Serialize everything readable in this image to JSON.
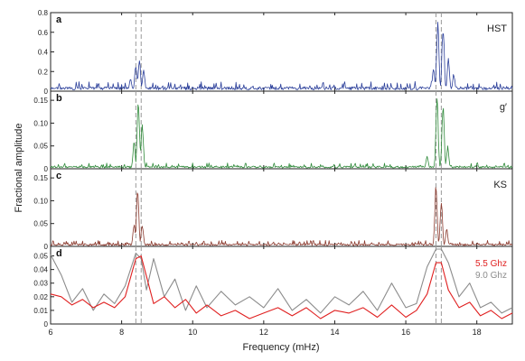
{
  "figure": {
    "ylabel": "Fractional amplitude",
    "xlabel": "Frequency (mHz)",
    "x_ticks": [
      "6",
      "8",
      "10",
      "12",
      "14",
      "16",
      "18"
    ]
  },
  "chart_data": {
    "type": "line",
    "xlabel": "Frequency (mHz)",
    "ylabel": "Fractional amplitude",
    "xlim": [
      6,
      19
    ],
    "x_ticks": [
      6,
      8,
      10,
      12,
      14,
      16,
      18
    ],
    "reference_lines_x": [
      8.4,
      8.55,
      16.85,
      17.0
    ],
    "colors": {
      "hst": "#2b3f9a",
      "gprime": "#2f8a3a",
      "ks": "#8b3a2e",
      "ghz55": "#e02020",
      "ghz90": "#8c8c8c",
      "dashed": "#9a9a9a"
    },
    "panels": [
      {
        "id": "a",
        "letter": "a",
        "label": "HST",
        "ylim": [
          0,
          0.8
        ],
        "yticks": [
          0,
          0.2,
          0.4,
          0.6,
          0.8
        ],
        "ytick_labels": [
          "0",
          "0.2",
          "0.4",
          "0.6",
          "0.8"
        ],
        "series": [
          {
            "key": "hst",
            "noise": 0.045,
            "peaks": [
              [
                8.25,
                0.14
              ],
              [
                8.4,
                0.28
              ],
              [
                8.5,
                0.33
              ],
              [
                8.62,
                0.22
              ],
              [
                16.78,
                0.25
              ],
              [
                16.9,
                0.72
              ],
              [
                17.05,
                0.72
              ],
              [
                17.2,
                0.35
              ],
              [
                17.35,
                0.18
              ]
            ]
          }
        ]
      },
      {
        "id": "b",
        "letter": "b",
        "label": "g′",
        "ylim": [
          0,
          0.17
        ],
        "yticks": [
          0,
          0.05,
          0.1,
          0.15
        ],
        "ytick_labels": [
          "0",
          "0.05",
          "0.10",
          "0.15"
        ],
        "series": [
          {
            "key": "gprime",
            "noise": 0.006,
            "peaks": [
              [
                8.35,
                0.06
              ],
              [
                8.47,
                0.16
              ],
              [
                8.58,
                0.1
              ],
              [
                16.88,
                0.16
              ],
              [
                17.05,
                0.15
              ],
              [
                17.18,
                0.05
              ],
              [
                16.6,
                0.03
              ]
            ]
          }
        ]
      },
      {
        "id": "c",
        "letter": "c",
        "label": "KS",
        "ylim": [
          0,
          0.17
        ],
        "yticks": [
          0,
          0.05,
          0.1,
          0.15
        ],
        "ytick_labels": [
          "0",
          "0.05",
          "0.10",
          "0.15"
        ],
        "series": [
          {
            "key": "ks",
            "noise": 0.006,
            "peaks": [
              [
                8.35,
                0.05
              ],
              [
                8.45,
                0.13
              ],
              [
                8.58,
                0.05
              ],
              [
                16.85,
                0.14
              ],
              [
                17.0,
                0.1
              ],
              [
                17.15,
                0.04
              ]
            ]
          }
        ]
      },
      {
        "id": "d",
        "letter": "d",
        "label": "",
        "ylim": [
          0,
          0.057
        ],
        "yticks": [
          0,
          0.01,
          0.02,
          0.03,
          0.04,
          0.05
        ],
        "ytick_labels": [
          "0",
          "0.01",
          "0.02",
          "0.03",
          "0.04",
          "0.05"
        ],
        "legend": [
          "5.5 Ghz",
          "9.0 Ghz"
        ],
        "series": [
          {
            "key": "ghz90",
            "name": "9.0 Ghz",
            "points": [
              [
                6.0,
                0.051
              ],
              [
                6.3,
                0.036
              ],
              [
                6.6,
                0.016
              ],
              [
                6.9,
                0.026
              ],
              [
                7.2,
                0.01
              ],
              [
                7.5,
                0.022
              ],
              [
                7.8,
                0.015
              ],
              [
                8.1,
                0.028
              ],
              [
                8.4,
                0.052
              ],
              [
                8.55,
                0.048
              ],
              [
                8.7,
                0.025
              ],
              [
                8.9,
                0.048
              ],
              [
                9.2,
                0.02
              ],
              [
                9.5,
                0.033
              ],
              [
                9.8,
                0.01
              ],
              [
                10.1,
                0.028
              ],
              [
                10.4,
                0.012
              ],
              [
                10.8,
                0.024
              ],
              [
                11.2,
                0.014
              ],
              [
                11.6,
                0.02
              ],
              [
                12.0,
                0.012
              ],
              [
                12.4,
                0.026
              ],
              [
                12.8,
                0.01
              ],
              [
                13.2,
                0.018
              ],
              [
                13.6,
                0.008
              ],
              [
                14.0,
                0.02
              ],
              [
                14.4,
                0.014
              ],
              [
                14.8,
                0.024
              ],
              [
                15.2,
                0.01
              ],
              [
                15.6,
                0.03
              ],
              [
                16.0,
                0.012
              ],
              [
                16.3,
                0.015
              ],
              [
                16.6,
                0.042
              ],
              [
                16.85,
                0.055
              ],
              [
                17.0,
                0.055
              ],
              [
                17.2,
                0.045
              ],
              [
                17.5,
                0.02
              ],
              [
                17.8,
                0.03
              ],
              [
                18.1,
                0.012
              ],
              [
                18.4,
                0.016
              ],
              [
                18.7,
                0.008
              ],
              [
                19.0,
                0.012
              ]
            ]
          },
          {
            "key": "ghz55",
            "name": "5.5 Ghz",
            "points": [
              [
                6.0,
                0.022
              ],
              [
                6.3,
                0.02
              ],
              [
                6.6,
                0.014
              ],
              [
                6.9,
                0.018
              ],
              [
                7.2,
                0.012
              ],
              [
                7.5,
                0.016
              ],
              [
                7.8,
                0.012
              ],
              [
                8.1,
                0.02
              ],
              [
                8.4,
                0.048
              ],
              [
                8.55,
                0.05
              ],
              [
                8.7,
                0.035
              ],
              [
                8.9,
                0.015
              ],
              [
                9.2,
                0.02
              ],
              [
                9.5,
                0.012
              ],
              [
                9.8,
                0.018
              ],
              [
                10.1,
                0.008
              ],
              [
                10.4,
                0.014
              ],
              [
                10.8,
                0.006
              ],
              [
                11.2,
                0.01
              ],
              [
                11.6,
                0.004
              ],
              [
                12.0,
                0.008
              ],
              [
                12.4,
                0.012
              ],
              [
                12.8,
                0.006
              ],
              [
                13.2,
                0.012
              ],
              [
                13.6,
                0.004
              ],
              [
                14.0,
                0.01
              ],
              [
                14.4,
                0.008
              ],
              [
                14.8,
                0.012
              ],
              [
                15.2,
                0.005
              ],
              [
                15.6,
                0.014
              ],
              [
                16.0,
                0.005
              ],
              [
                16.3,
                0.01
              ],
              [
                16.6,
                0.022
              ],
              [
                16.85,
                0.045
              ],
              [
                17.0,
                0.045
              ],
              [
                17.2,
                0.025
              ],
              [
                17.5,
                0.012
              ],
              [
                17.8,
                0.016
              ],
              [
                18.1,
                0.006
              ],
              [
                18.4,
                0.01
              ],
              [
                18.7,
                0.004
              ],
              [
                19.0,
                0.008
              ]
            ]
          }
        ]
      }
    ]
  }
}
